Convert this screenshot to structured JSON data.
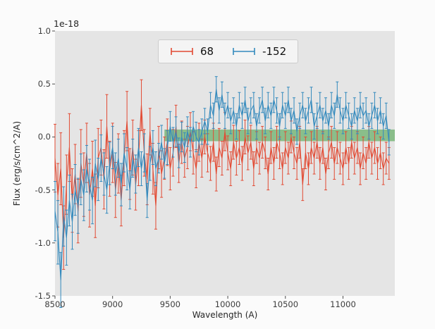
{
  "colors": {
    "figure_bg": "#fbfbfb",
    "plot_bg": "#e5e5e5",
    "tick_color": "#4d4d4d",
    "legend_bg": "#f4f4f4",
    "legend_border": "#cccccc"
  },
  "axes": {
    "xlabel": "Wavelength (A)",
    "ylabel": "Flux (erg/s/cm^2/A)",
    "offset_label": "1e-18"
  },
  "chart_data": {
    "type": "line",
    "title": "",
    "xlabel": "Wavelength (A)",
    "ylabel": "Flux (erg/s/cm^2/A)",
    "offset_label": "1e-18",
    "xlim": [
      8500,
      11450
    ],
    "ylim": [
      -1.5,
      1.0
    ],
    "grid": false,
    "legend_position": "upper center",
    "x_ticks": [
      8500,
      9000,
      9500,
      10000,
      10500,
      11000
    ],
    "x_tick_labels": [
      "8500",
      "9000",
      "9500",
      "10000",
      "10500",
      "11000"
    ],
    "y_ticks": [
      -1.5,
      -1.0,
      -0.5,
      0.0,
      0.5,
      1.0
    ],
    "y_tick_labels": [
      "-1.5",
      "-1.0",
      "-0.5",
      "0.0",
      "0.5",
      "1.0"
    ],
    "band": {
      "x0": 9450,
      "x1": 11450,
      "y0": -0.04,
      "y1": 0.07,
      "color": "#3f9e3f",
      "opacity": 0.55
    },
    "x": [
      8500,
      8525,
      8550,
      8575,
      8600,
      8625,
      8650,
      8675,
      8700,
      8725,
      8750,
      8775,
      8800,
      8825,
      8850,
      8875,
      8900,
      8925,
      8950,
      8975,
      9000,
      9025,
      9050,
      9075,
      9100,
      9125,
      9150,
      9175,
      9200,
      9225,
      9250,
      9275,
      9300,
      9325,
      9350,
      9375,
      9400,
      9425,
      9450,
      9475,
      9500,
      9525,
      9550,
      9575,
      9600,
      9625,
      9650,
      9675,
      9700,
      9725,
      9750,
      9775,
      9800,
      9825,
      9850,
      9875,
      9900,
      9925,
      9950,
      9975,
      10000,
      10025,
      10050,
      10075,
      10100,
      10125,
      10150,
      10175,
      10200,
      10225,
      10250,
      10275,
      10300,
      10325,
      10350,
      10375,
      10400,
      10425,
      10450,
      10475,
      10500,
      10525,
      10550,
      10575,
      10600,
      10625,
      10650,
      10675,
      10700,
      10725,
      10750,
      10775,
      10800,
      10825,
      10850,
      10875,
      10900,
      10925,
      10950,
      10975,
      11000,
      11025,
      11050,
      11075,
      11100,
      11125,
      11150,
      11175,
      11200,
      11225,
      11250,
      11275,
      11300,
      11325,
      11350,
      11375,
      11400
    ],
    "series": [
      {
        "name": "68",
        "color": "#e24a33",
        "y": [
          -0.2,
          -0.55,
          -0.3,
          -0.95,
          -0.45,
          -0.1,
          -0.6,
          -0.35,
          -0.7,
          -0.25,
          -0.45,
          -0.15,
          -0.55,
          -0.3,
          -0.65,
          -0.2,
          -0.1,
          -0.4,
          0.1,
          -0.3,
          -0.15,
          -0.5,
          -0.25,
          -0.6,
          -0.2,
          0.15,
          -0.35,
          -0.1,
          -0.45,
          -0.2,
          0.3,
          -0.15,
          -0.4,
          0.05,
          -0.3,
          -0.65,
          -0.1,
          -0.35,
          -0.2,
          -0.05,
          -0.3,
          -0.15,
          0.1,
          -0.25,
          -0.05,
          -0.2,
          -0.1,
          0.05,
          -0.15,
          -0.3,
          -0.05,
          -0.2,
          0.0,
          -0.15,
          -0.25,
          -0.05,
          -0.35,
          -0.1,
          -0.2,
          0.05,
          -0.15,
          -0.3,
          -0.05,
          -0.2,
          -0.1,
          -0.25,
          0.0,
          -0.15,
          -0.05,
          -0.3,
          -0.1,
          -0.2,
          -0.05,
          -0.15,
          -0.35,
          -0.1,
          -0.25,
          -0.05,
          -0.15,
          -0.3,
          -0.1,
          -0.2,
          0.0,
          -0.15,
          -0.25,
          -0.05,
          -0.45,
          -0.15,
          -0.3,
          -0.1,
          -0.2,
          -0.05,
          -0.25,
          -0.1,
          -0.35,
          -0.15,
          -0.05,
          -0.25,
          -0.1,
          -0.2,
          -0.3,
          -0.1,
          -0.25,
          -0.05,
          -0.2,
          -0.1,
          -0.3,
          -0.15,
          -0.25,
          -0.05,
          -0.2,
          -0.1,
          -0.25,
          -0.15,
          -0.3,
          -0.2,
          -0.25
        ],
        "yerr": [
          0.32,
          0.3,
          0.34,
          0.3,
          0.28,
          0.32,
          0.3,
          0.28,
          0.3,
          0.32,
          0.3,
          0.28,
          0.3,
          0.26,
          0.3,
          0.28,
          0.26,
          0.28,
          0.3,
          0.26,
          0.28,
          0.26,
          0.28,
          0.24,
          0.26,
          0.28,
          0.24,
          0.26,
          0.24,
          0.26,
          0.24,
          0.22,
          0.24,
          0.22,
          0.24,
          0.22,
          0.2,
          0.22,
          0.2,
          0.22,
          0.2,
          0.22,
          0.2,
          0.18,
          0.2,
          0.18,
          0.2,
          0.18,
          0.2,
          0.18,
          0.18,
          0.18,
          0.16,
          0.18,
          0.16,
          0.18,
          0.16,
          0.18,
          0.16,
          0.18,
          0.16,
          0.16,
          0.16,
          0.16,
          0.16,
          0.16,
          0.16,
          0.16,
          0.16,
          0.16,
          0.15,
          0.15,
          0.15,
          0.15,
          0.15,
          0.15,
          0.15,
          0.15,
          0.15,
          0.15,
          0.15,
          0.15,
          0.15,
          0.15,
          0.15,
          0.15,
          0.15,
          0.15,
          0.15,
          0.15,
          0.15,
          0.15,
          0.15,
          0.15,
          0.15,
          0.15,
          0.15,
          0.15,
          0.15,
          0.15,
          0.15,
          0.15,
          0.15,
          0.15,
          0.15,
          0.15,
          0.15,
          0.15,
          0.15,
          0.15,
          0.15,
          0.15,
          0.15,
          0.15,
          0.15,
          0.15,
          0.15
        ]
      },
      {
        "name": "-152",
        "color": "#348abd",
        "y": [
          -0.7,
          -0.9,
          -1.35,
          -0.75,
          -0.95,
          -0.6,
          -0.8,
          -0.5,
          -0.65,
          -0.4,
          -0.55,
          -0.3,
          -0.45,
          -0.6,
          -0.25,
          -0.4,
          -0.2,
          -0.35,
          -0.5,
          -0.25,
          -0.1,
          -0.35,
          -0.2,
          -0.45,
          -0.15,
          -0.3,
          -0.5,
          -0.2,
          -0.35,
          -0.1,
          -0.3,
          -0.15,
          -0.6,
          -0.25,
          -0.1,
          -0.3,
          -0.2,
          -0.05,
          -0.25,
          -0.1,
          0.1,
          -0.05,
          0.05,
          -0.15,
          0.0,
          -0.1,
          0.05,
          -0.05,
          0.1,
          0.0,
          -0.05,
          0.05,
          0.15,
          0.05,
          0.3,
          0.2,
          0.45,
          0.25,
          0.4,
          0.2,
          0.3,
          0.15,
          0.25,
          0.1,
          0.3,
          0.2,
          0.35,
          0.15,
          0.25,
          0.3,
          0.1,
          0.25,
          0.35,
          0.15,
          0.3,
          0.2,
          0.35,
          0.25,
          0.1,
          0.3,
          0.2,
          0.35,
          0.15,
          0.25,
          0.05,
          0.2,
          0.3,
          0.15,
          0.25,
          0.35,
          0.1,
          0.2,
          0.3,
          0.15,
          0.25,
          0.1,
          0.3,
          0.2,
          0.4,
          0.25,
          0.15,
          0.3,
          0.2,
          0.1,
          0.25,
          0.15,
          0.3,
          0.2,
          0.25,
          0.1,
          0.2,
          0.3,
          0.15,
          0.25,
          0.1,
          0.2,
          -0.05
        ],
        "yerr": [
          0.28,
          0.3,
          0.26,
          0.28,
          0.26,
          0.24,
          0.26,
          0.24,
          0.26,
          0.24,
          0.24,
          0.22,
          0.24,
          0.22,
          0.22,
          0.2,
          0.22,
          0.2,
          0.22,
          0.2,
          0.2,
          0.2,
          0.18,
          0.2,
          0.18,
          0.2,
          0.18,
          0.18,
          0.18,
          0.18,
          0.16,
          0.18,
          0.16,
          0.16,
          0.16,
          0.16,
          0.14,
          0.16,
          0.14,
          0.16,
          0.14,
          0.14,
          0.14,
          0.14,
          0.14,
          0.14,
          0.14,
          0.14,
          0.14,
          0.14,
          0.12,
          0.12,
          0.12,
          0.12,
          0.12,
          0.12,
          0.12,
          0.12,
          0.12,
          0.12,
          0.12,
          0.12,
          0.12,
          0.12,
          0.12,
          0.12,
          0.12,
          0.12,
          0.12,
          0.12,
          0.12,
          0.12,
          0.12,
          0.12,
          0.12,
          0.12,
          0.12,
          0.12,
          0.12,
          0.12,
          0.12,
          0.12,
          0.12,
          0.12,
          0.12,
          0.12,
          0.12,
          0.12,
          0.12,
          0.12,
          0.12,
          0.12,
          0.12,
          0.12,
          0.12,
          0.12,
          0.12,
          0.12,
          0.12,
          0.12,
          0.12,
          0.12,
          0.12,
          0.12,
          0.12,
          0.12,
          0.12,
          0.12,
          0.12,
          0.12,
          0.12,
          0.12,
          0.12,
          0.12,
          0.12,
          0.12,
          0.12
        ]
      }
    ]
  }
}
